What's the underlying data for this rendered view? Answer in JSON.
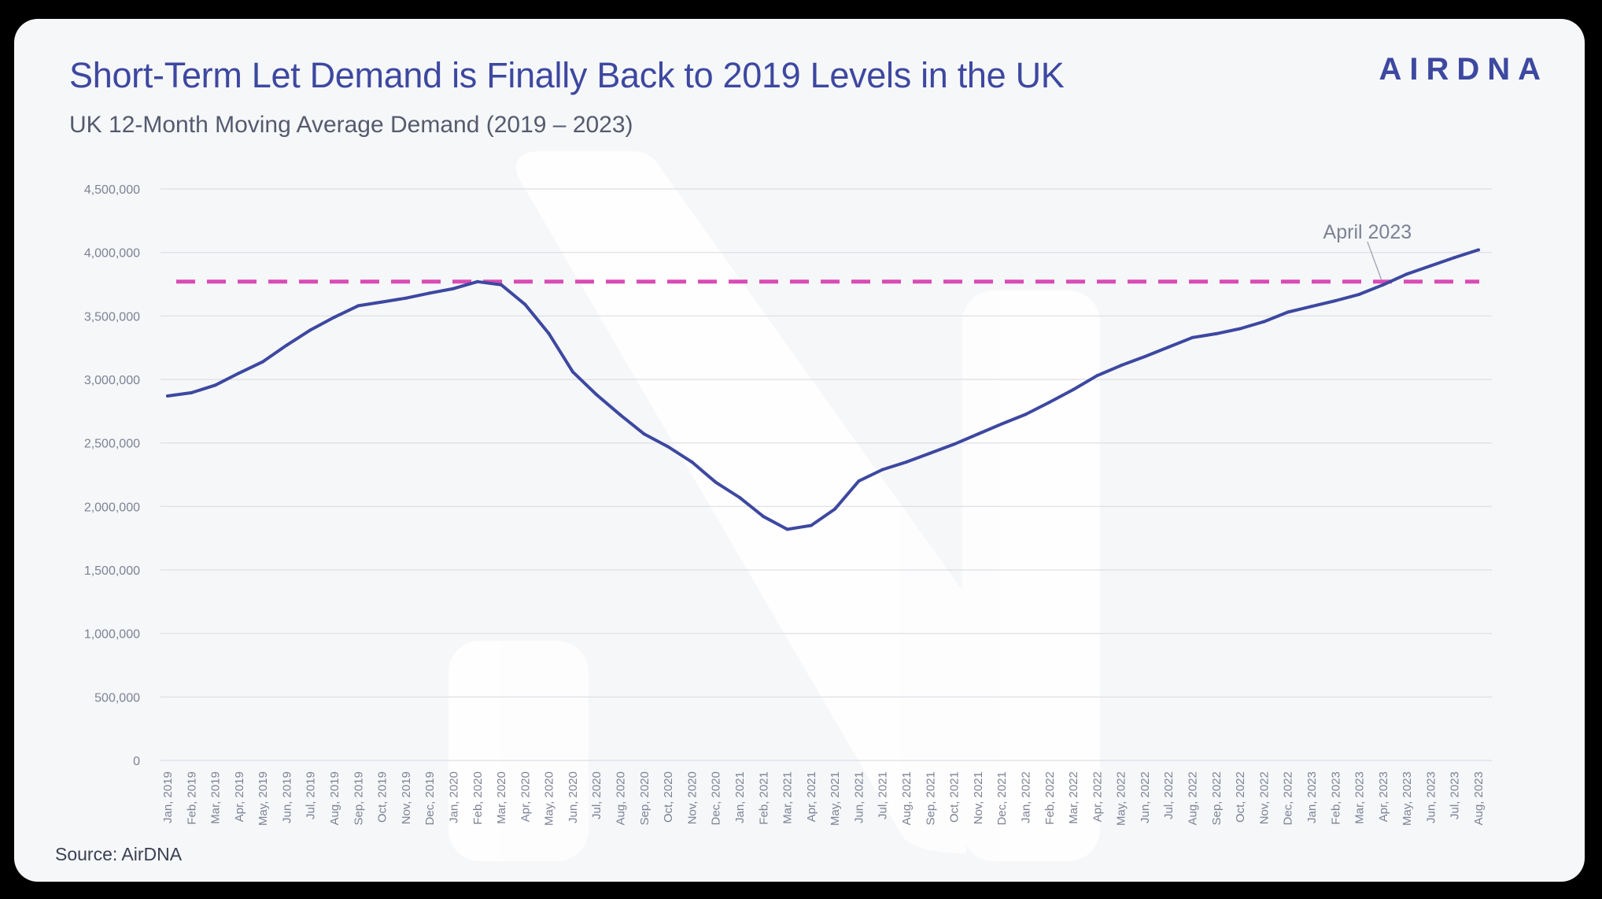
{
  "header": {
    "title": "Short-Term Let Demand is Finally Back to 2019 Levels in the UK",
    "subtitle": "UK 12-Month Moving Average Demand (2019 – 2023)",
    "logo": "AIRDNA"
  },
  "footer": {
    "source": "Source: AirDNA"
  },
  "colors": {
    "line": "#3d48a0",
    "reference": "#d94bb5",
    "grid": "#dcdde3",
    "card": "#f6f7f9"
  },
  "chart_data": {
    "type": "line",
    "title": "UK 12-Month Moving Average Demand (2019 – 2023)",
    "xlabel": "",
    "ylabel": "",
    "ylim": [
      0,
      4500000
    ],
    "yticks": [
      0,
      500000,
      1000000,
      1500000,
      2000000,
      2500000,
      3000000,
      3500000,
      4000000,
      4500000
    ],
    "ytick_labels": [
      "0",
      "500,000",
      "1,000,000",
      "1,500,000",
      "2,000,000",
      "2,500,000",
      "3,000,000",
      "3,500,000",
      "4,000,000",
      "4,500,000"
    ],
    "grid": true,
    "categories": [
      "Jan, 2019",
      "Feb, 2019",
      "Mar, 2019",
      "Apr, 2019",
      "May, 2019",
      "Jun, 2019",
      "Jul, 2019",
      "Aug, 2019",
      "Sep, 2019",
      "Oct, 2019",
      "Nov, 2019",
      "Dec, 2019",
      "Jan, 2020",
      "Feb, 2020",
      "Mar, 2020",
      "Apr, 2020",
      "May, 2020",
      "Jun, 2020",
      "Jul, 2020",
      "Aug, 2020",
      "Sep, 2020",
      "Oct, 2020",
      "Nov, 2020",
      "Dec, 2020",
      "Jan, 2021",
      "Feb, 2021",
      "Mar, 2021",
      "Apr, 2021",
      "May, 2021",
      "Jun, 2021",
      "Jul, 2021",
      "Aug, 2021",
      "Sep, 2021",
      "Oct, 2021",
      "Nov, 2021",
      "Dec, 2021",
      "Jan, 2022",
      "Feb, 2022",
      "Mar, 2022",
      "Apr, 2022",
      "May, 2022",
      "Jun, 2022",
      "Jul, 2022",
      "Aug, 2022",
      "Sep, 2022",
      "Oct, 2022",
      "Nov, 2022",
      "Dec, 2022",
      "Jan, 2023",
      "Feb, 2023",
      "Mar, 2023",
      "Apr, 2023",
      "May, 2023",
      "Jun, 2023",
      "Jul, 2023",
      "Aug, 2023"
    ],
    "series": [
      {
        "name": "UK 12-Month Moving Average Demand",
        "values": [
          2870000,
          2895000,
          2955000,
          3050000,
          3140000,
          3270000,
          3390000,
          3490000,
          3580000,
          3610000,
          3640000,
          3680000,
          3715000,
          3770000,
          3745000,
          3590000,
          3360000,
          3060000,
          2880000,
          2720000,
          2570000,
          2470000,
          2350000,
          2190000,
          2070000,
          1920000,
          1820000,
          1850000,
          1980000,
          2200000,
          2290000,
          2350000,
          2420000,
          2490000,
          2570000,
          2650000,
          2725000,
          2820000,
          2920000,
          3030000,
          3110000,
          3180000,
          3255000,
          3330000,
          3360000,
          3400000,
          3455000,
          3530000,
          3575000,
          3620000,
          3670000,
          3745000,
          3830000,
          3895000,
          3960000,
          4020000
        ]
      }
    ],
    "reference_line": {
      "value": 3770000,
      "style": "dashed"
    },
    "annotation": {
      "text": "April 2023",
      "target_category": "Apr, 2023"
    }
  }
}
